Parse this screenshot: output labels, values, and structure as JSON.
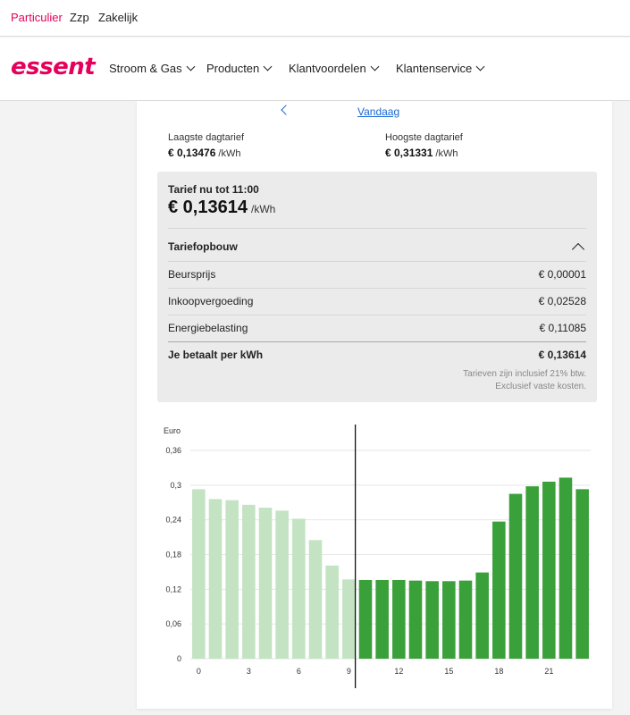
{
  "topbar": {
    "items": [
      "Particulier",
      "Zzp",
      "Zakelijk"
    ]
  },
  "brand": {
    "logo_text": "essent",
    "color": "#e5005b"
  },
  "nav": {
    "items": [
      "Stroom & Gas",
      "Producten",
      "Klantvoordelen",
      "Klantenservice"
    ]
  },
  "day_nav": {
    "date_label": "Vandaag",
    "prev_icon": "chevron-left-icon"
  },
  "summary": {
    "lowest_label": "Laagste dagtarief",
    "lowest_value": "€ 0,13476",
    "highest_label": "Hoogste dagtarief",
    "highest_value": "€ 0,31331",
    "unit": "/kWh"
  },
  "current": {
    "label": "Tarief nu tot 11:00",
    "value": "€ 0,13614",
    "unit": "/kWh"
  },
  "breakdown": {
    "title": "Tariefopbouw",
    "toggle_icon": "chevron-up-icon",
    "rows": [
      {
        "label": "Beursprijs",
        "value": "€ 0,00001"
      },
      {
        "label": "Inkoopvergoeding",
        "value": "€ 0,02528"
      },
      {
        "label": "Energiebelasting",
        "value": "€ 0,11085"
      }
    ],
    "total": {
      "label": "Je betaalt per kWh",
      "value": "€ 0,13614"
    },
    "note_1": "Tarieven zijn inclusief 21% btw.",
    "note_2": "Exclusief vaste kosten."
  },
  "colors": {
    "past_bar": "#c3e3c3",
    "future_bar": "#3aa03a",
    "link": "#1967d2"
  },
  "chart_data": {
    "type": "bar",
    "ylabel": "Euro",
    "ylim": [
      0,
      0.36
    ],
    "y_ticks": [
      "0",
      "0,06",
      "0,12",
      "0,18",
      "0,24",
      "0,3",
      "0,36"
    ],
    "x_ticks": [
      "0",
      "3",
      "6",
      "9",
      "12",
      "15",
      "18",
      "21"
    ],
    "x_tick_hours": [
      0,
      3,
      6,
      9,
      12,
      15,
      18,
      21
    ],
    "current_hour": 10,
    "categories": [
      0,
      1,
      2,
      3,
      4,
      5,
      6,
      7,
      8,
      9,
      10,
      11,
      12,
      13,
      14,
      15,
      16,
      17,
      18,
      19,
      20,
      21,
      22,
      23
    ],
    "values": [
      0.293,
      0.276,
      0.274,
      0.266,
      0.261,
      0.256,
      0.242,
      0.205,
      0.161,
      0.137,
      0.136,
      0.136,
      0.136,
      0.135,
      0.134,
      0.134,
      0.135,
      0.149,
      0.237,
      0.285,
      0.298,
      0.306,
      0.313,
      0.293
    ],
    "grid": true
  }
}
